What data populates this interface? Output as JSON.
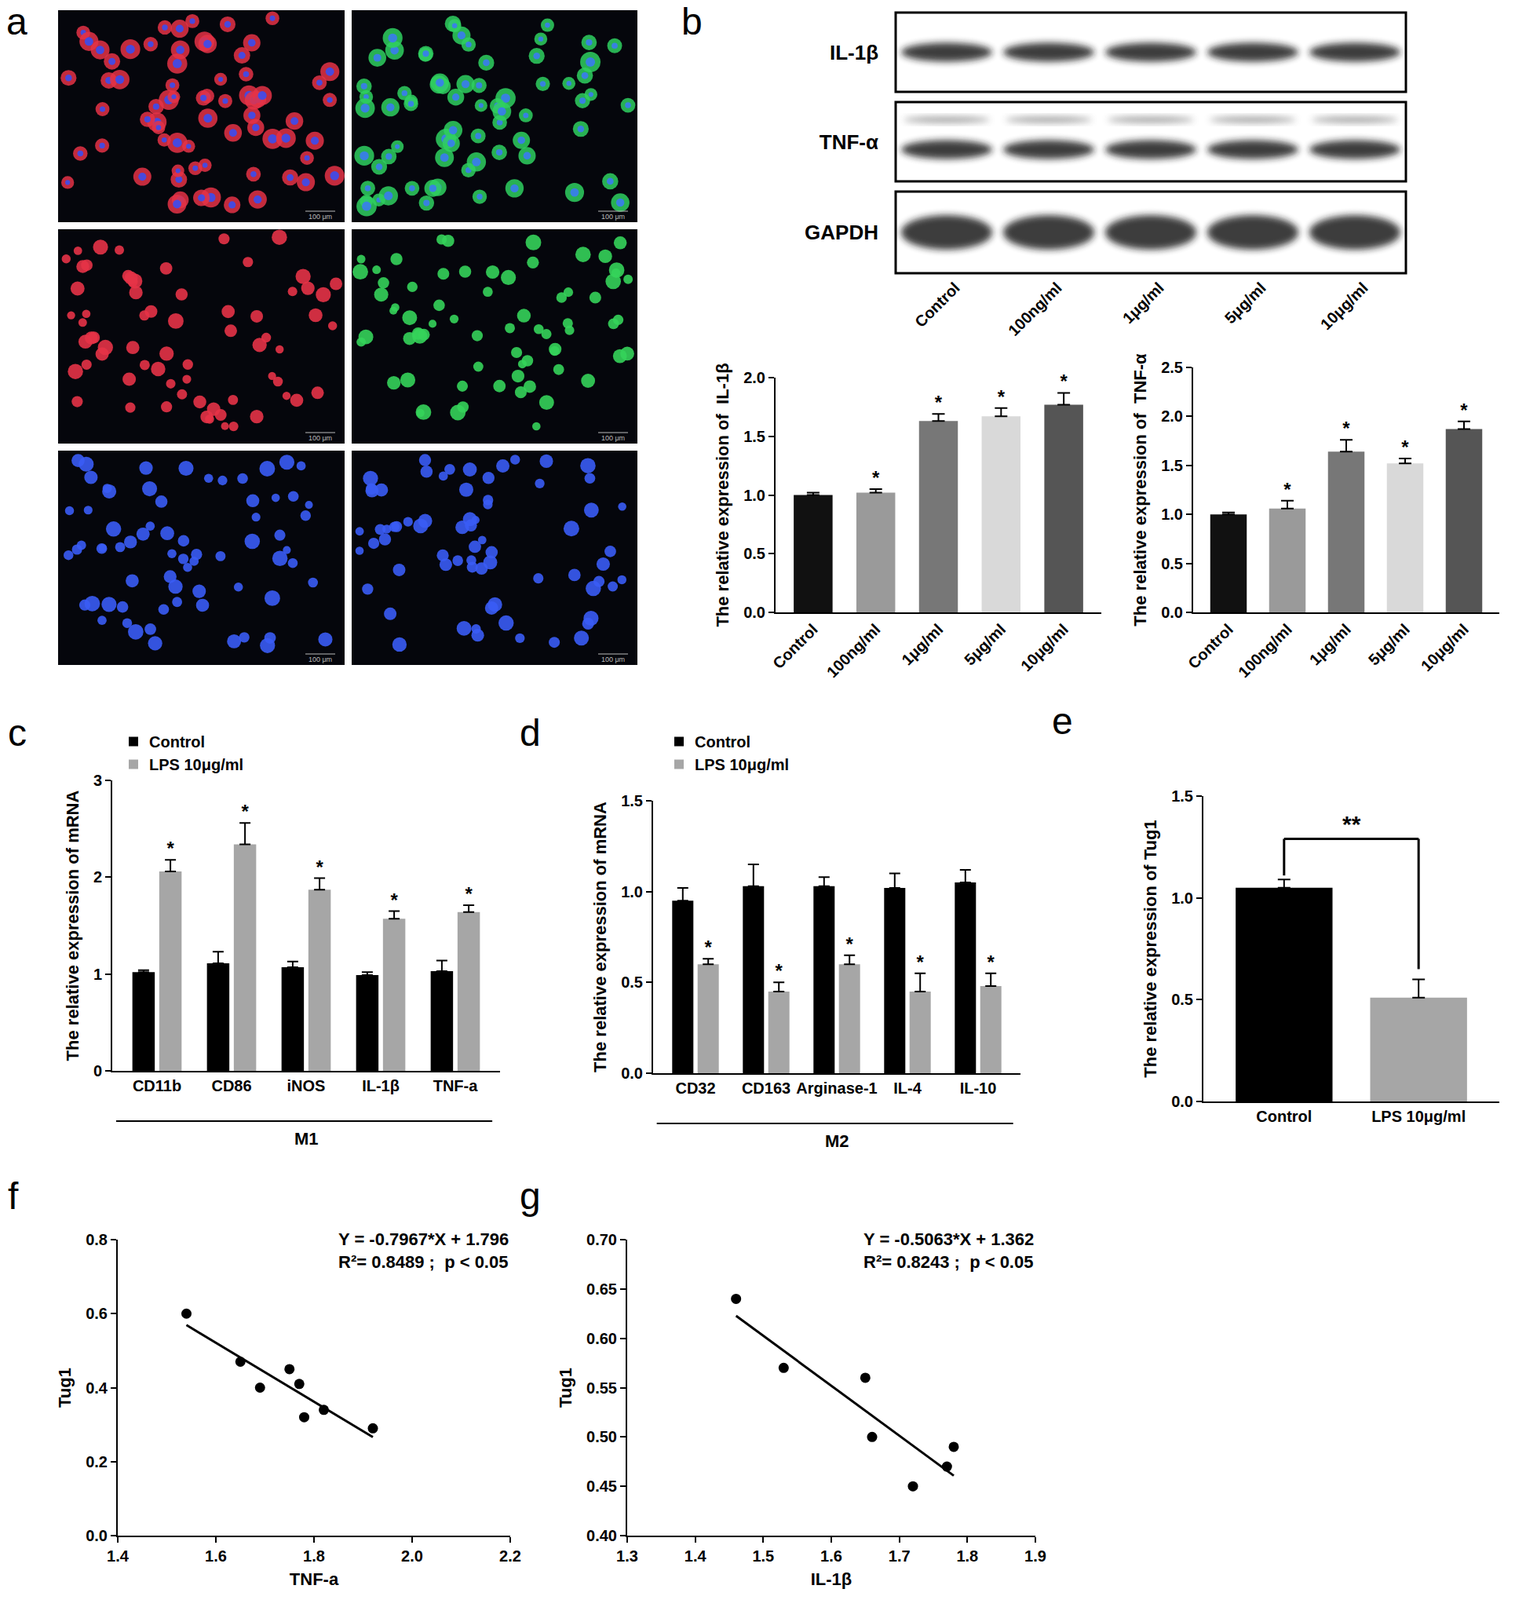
{
  "figure_a": {
    "label": "a",
    "scale_bar": "100 μm",
    "images": [
      {
        "colors": [
          "#e53347",
          "#3a4cf0"
        ]
      },
      {
        "colors": [
          "#2fd060",
          "#3a7cf0"
        ]
      },
      {
        "colors": [
          "#e53347"
        ]
      },
      {
        "colors": [
          "#35d35a"
        ]
      },
      {
        "colors": [
          "#3a5cf5"
        ]
      },
      {
        "colors": [
          "#3a5cf5"
        ]
      }
    ]
  },
  "blot": {
    "label": "b",
    "rows": [
      "IL-1β",
      "TNF-α",
      "GAPDH"
    ],
    "lanes": [
      "Control",
      "100ng/ml",
      "1μg/ml",
      "5μg/ml",
      "10μg/ml"
    ]
  },
  "chart_data": [
    {
      "type": "bar",
      "ylabel": "The relative expression of  IL-1β",
      "categories": [
        "Control",
        "100ng/ml",
        "1μg/ml",
        "5μg/ml",
        "10μg/ml"
      ],
      "values": [
        1.0,
        1.02,
        1.63,
        1.67,
        1.77
      ],
      "errors": [
        0.02,
        0.03,
        0.06,
        0.07,
        0.1
      ],
      "significance": [
        null,
        "*",
        "*",
        "*",
        "*"
      ],
      "colors": [
        "#111111",
        "#9a9a9a",
        "#777777",
        "#d9d9d9",
        "#555555"
      ],
      "ylim": [
        0,
        2
      ],
      "yticks": [
        {
          "value": 0,
          "label": "0.0"
        },
        0.5,
        {
          "value": 1,
          "label": "1.0"
        },
        1.5,
        {
          "value": 2,
          "label": "2.0"
        }
      ]
    },
    {
      "type": "bar",
      "ylabel": "The relative expression of  TNF-α",
      "categories": [
        "Control",
        "100ng/ml",
        "1μg/ml",
        "5μg/ml",
        "10μg/ml"
      ],
      "values": [
        1.0,
        1.06,
        1.64,
        1.52,
        1.87
      ],
      "errors": [
        0.02,
        0.08,
        0.12,
        0.05,
        0.08
      ],
      "significance": [
        null,
        "*",
        "*",
        "*",
        "*"
      ],
      "colors": [
        "#111111",
        "#9a9a9a",
        "#777777",
        "#d9d9d9",
        "#555555"
      ],
      "ylim": [
        0,
        2.5
      ],
      "yticks": [
        {
          "value": 0,
          "label": "0.0"
        },
        0.5,
        {
          "value": 1,
          "label": "1.0"
        },
        1.5,
        {
          "value": 2,
          "label": "2.0"
        },
        2.5
      ]
    },
    {
      "type": "bar",
      "label": "c",
      "ylabel": "The relative expression of mRNA",
      "group_label": "M1",
      "categories": [
        "CD11b",
        "CD86",
        "iNOS",
        "IL-1β",
        "TNF-a"
      ],
      "series": [
        {
          "name": "Control",
          "color": "#000000",
          "values": [
            1.02,
            1.11,
            1.07,
            0.99,
            1.03
          ],
          "errors": [
            0.02,
            0.12,
            0.06,
            0.03,
            0.11
          ]
        },
        {
          "name": "LPS 10μg/ml",
          "color": "#a6a6a6",
          "values": [
            2.06,
            2.34,
            1.87,
            1.57,
            1.64
          ],
          "errors": [
            0.12,
            0.22,
            0.12,
            0.08,
            0.07
          ],
          "significance": [
            "*",
            "*",
            "*",
            "*",
            "*"
          ]
        }
      ],
      "ylim": [
        0,
        3
      ],
      "yticks": [
        0,
        1,
        2,
        3
      ],
      "legend": "upper left"
    },
    {
      "type": "bar",
      "label": "d",
      "ylabel": "The relative expression of mRNA",
      "group_label": "M2",
      "categories": [
        "CD32",
        "CD163",
        "Arginase-1",
        "IL-4",
        "IL-10"
      ],
      "series": [
        {
          "name": "Control",
          "color": "#000000",
          "values": [
            0.95,
            1.03,
            1.03,
            1.02,
            1.05
          ],
          "errors": [
            0.07,
            0.12,
            0.05,
            0.08,
            0.07
          ]
        },
        {
          "name": "LPS 10μg/ml",
          "color": "#a6a6a6",
          "values": [
            0.6,
            0.45,
            0.6,
            0.45,
            0.48
          ],
          "errors": [
            0.03,
            0.05,
            0.05,
            0.1,
            0.07
          ],
          "significance": [
            "*",
            "*",
            "*",
            "*",
            "*"
          ]
        }
      ],
      "ylim": [
        0,
        1.5
      ],
      "yticks": [
        {
          "value": 0,
          "label": "0.0"
        },
        0.5,
        {
          "value": 1,
          "label": "1.0"
        },
        1.5
      ],
      "legend": "upper left"
    },
    {
      "type": "bar",
      "label": "e",
      "ylabel": "The relative expression of Tug1",
      "categories": [
        "Control",
        "LPS 10μg/ml"
      ],
      "values": [
        1.05,
        0.51
      ],
      "errors": [
        0.04,
        0.09
      ],
      "colors": [
        "#000000",
        "#a6a6a6"
      ],
      "comparison": "**",
      "ylim": [
        0,
        1.5
      ],
      "yticks": [
        {
          "value": 0,
          "label": "0.0"
        },
        0.5,
        {
          "value": 1,
          "label": "1.0"
        },
        1.5
      ]
    },
    {
      "type": "scatter",
      "label": "f",
      "xlabel": "TNF-a",
      "ylabel": "Tug1",
      "color": "#000000",
      "x": [
        1.54,
        1.65,
        1.69,
        1.75,
        1.77,
        1.78,
        1.82,
        1.92
      ],
      "values": [
        0.6,
        0.47,
        0.4,
        0.45,
        0.41,
        0.32,
        0.34,
        0.29
      ],
      "fit": {
        "slope": -0.7967,
        "intercept": 1.796
      },
      "annotations": [
        "Y = -0.7967*X + 1.796",
        "R²= 0.8489 ;  p < 0.05"
      ],
      "xlim": [
        1.4,
        2.2
      ],
      "xticks": [
        1.4,
        1.6,
        1.8,
        {
          "value": 2,
          "label": "2.0"
        },
        2.2
      ],
      "ylim": [
        0,
        0.8
      ],
      "yticks": [
        {
          "value": 0,
          "label": "0.0"
        },
        0.2,
        0.4,
        0.6,
        0.8
      ]
    },
    {
      "type": "scatter",
      "label": "g",
      "xlabel": "IL-1β",
      "ylabel": "Tug1",
      "color": "#000000",
      "x": [
        1.46,
        1.53,
        1.65,
        1.66,
        1.72,
        1.77,
        1.78
      ],
      "values": [
        0.64,
        0.57,
        0.56,
        0.5,
        0.45,
        0.47,
        0.49
      ],
      "fit": {
        "slope": -0.5063,
        "intercept": 1.362
      },
      "annotations": [
        "Y = -0.5063*X + 1.362",
        "R²= 0.8243 ;  p < 0.05"
      ],
      "xlim": [
        1.3,
        1.9
      ],
      "xticks": [
        1.3,
        1.4,
        1.5,
        1.6,
        1.7,
        1.8,
        1.9
      ],
      "ylim": [
        0.4,
        0.7
      ],
      "yticks": [
        {
          "value": 0.4,
          "label": "0.40"
        },
        {
          "value": 0.45,
          "label": "0.45"
        },
        {
          "value": 0.5,
          "label": "0.50"
        },
        {
          "value": 0.55,
          "label": "0.55"
        },
        {
          "value": 0.6,
          "label": "0.60"
        },
        {
          "value": 0.65,
          "label": "0.65"
        },
        {
          "value": 0.7,
          "label": "0.70"
        }
      ]
    }
  ]
}
